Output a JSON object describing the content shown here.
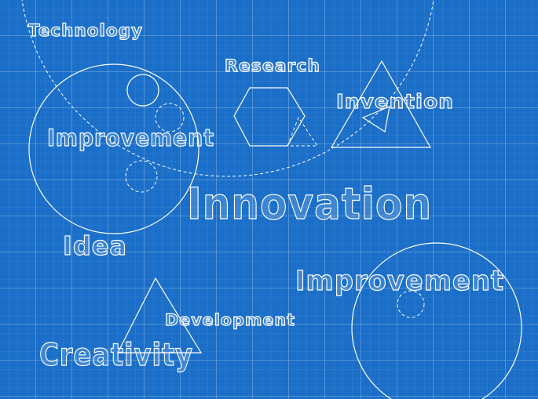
{
  "words": [
    {
      "text": "Technology"
    },
    {
      "text": "Research"
    },
    {
      "text": "Invention"
    },
    {
      "text": "Improvement"
    },
    {
      "text": "Innovation"
    },
    {
      "text": "Idea"
    },
    {
      "text": "Improvement"
    },
    {
      "text": "Development"
    },
    {
      "text": "Creativity"
    }
  ]
}
